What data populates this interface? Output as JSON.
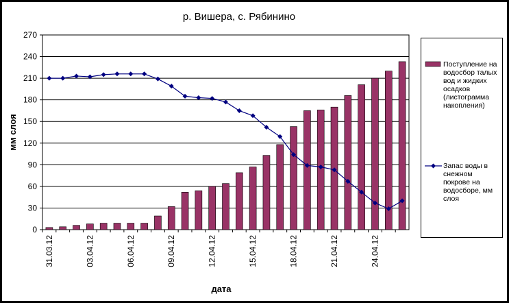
{
  "chart_data": {
    "type": "bar",
    "title": "р. Вишера, с. Рябинино",
    "x_label": "дата",
    "y_label": "мм слоя",
    "categories": [
      "31.03.12",
      null,
      null,
      "03.04.12",
      null,
      null,
      "06.04.12",
      null,
      null,
      "09.04.12",
      null,
      null,
      "12.04.12",
      null,
      null,
      "15.04.12",
      null,
      null,
      "18.04.12",
      null,
      null,
      "21.04.12",
      null,
      null,
      "24.04.12",
      null,
      null
    ],
    "series": [
      {
        "name": "Поступление на водосбор талых вод и жидких осадков (листограмма накопления)",
        "type": "bar",
        "color": "#993366",
        "values": [
          3,
          4,
          6,
          8,
          9,
          9,
          9,
          9,
          19,
          32,
          52,
          54,
          60,
          64,
          79,
          87,
          103,
          118,
          143,
          165,
          166,
          170,
          186,
          201,
          210,
          220,
          233
        ]
      },
      {
        "name": "Запас воды в снежном покрове на водосборе, мм слоя",
        "type": "line",
        "color": "#000080",
        "values": [
          210,
          210,
          213,
          212,
          215,
          216,
          216,
          216,
          209,
          199,
          185,
          183,
          182,
          177,
          165,
          158,
          142,
          129,
          104,
          89,
          87,
          83,
          67,
          52,
          37,
          29,
          40
        ]
      }
    ],
    "ylim": [
      0,
      270
    ],
    "yticks": [
      0,
      30,
      60,
      90,
      120,
      150,
      180,
      210,
      240,
      270
    ],
    "grid": true
  }
}
